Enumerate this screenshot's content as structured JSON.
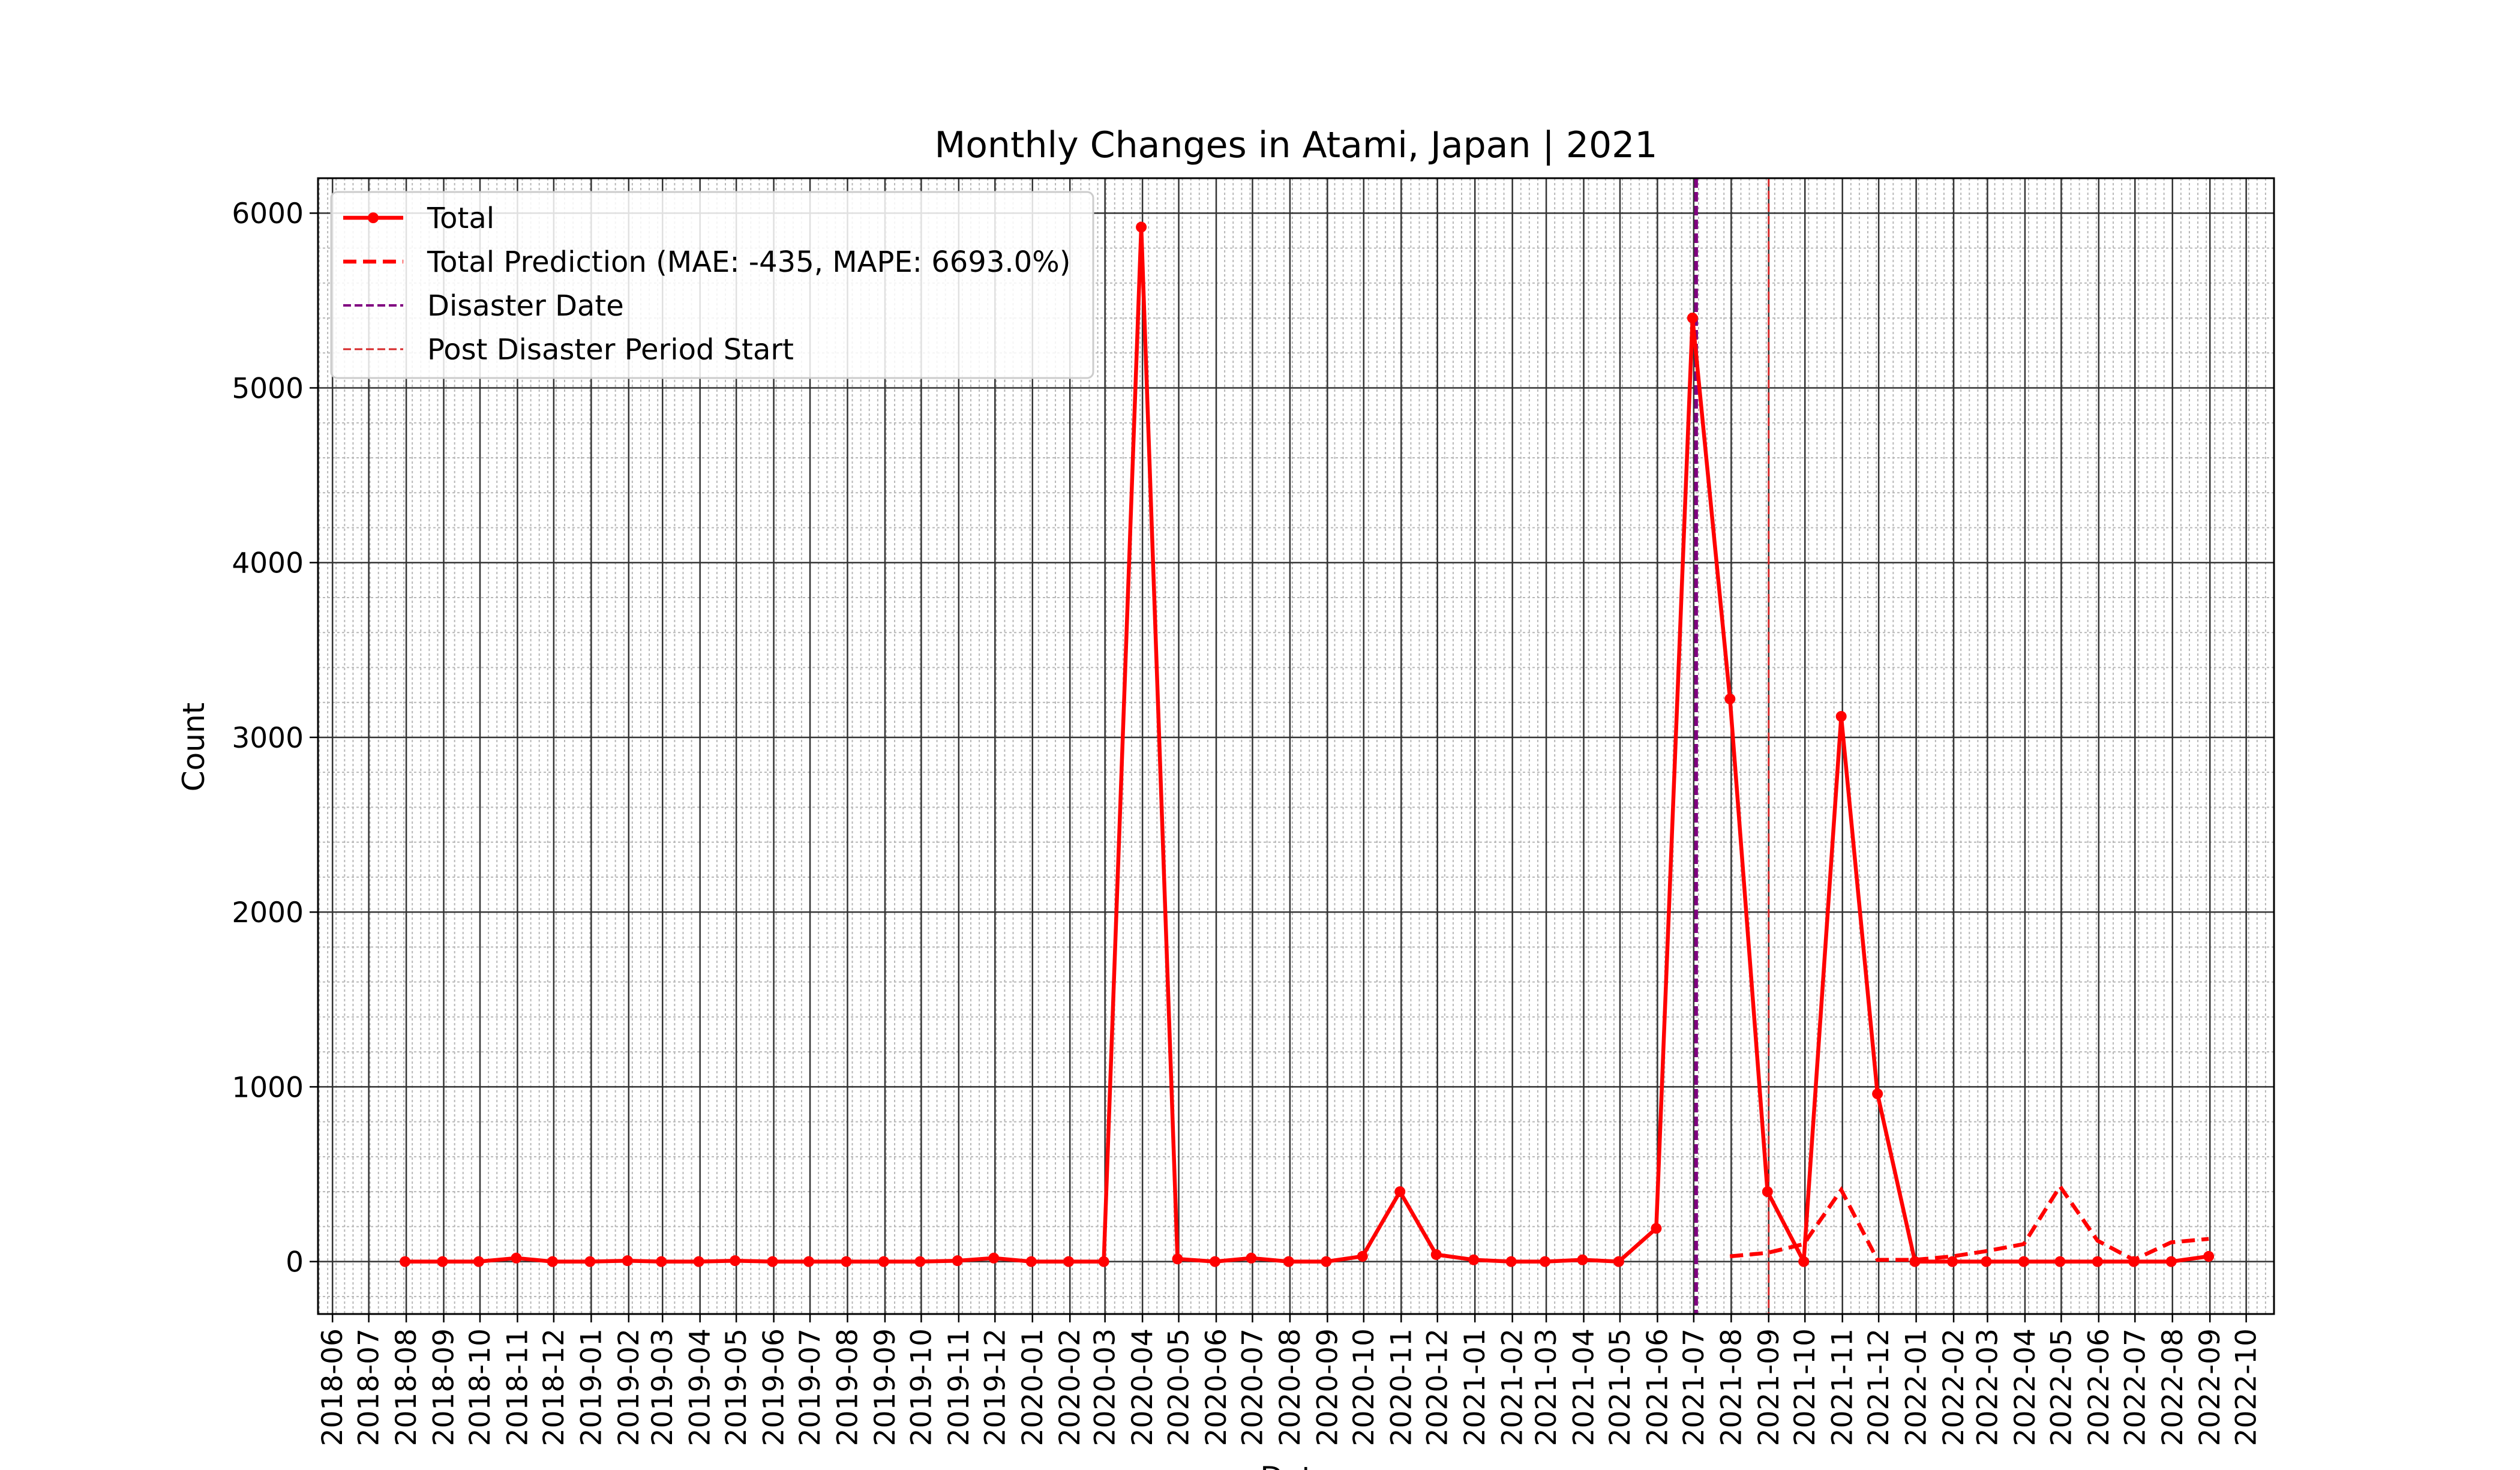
{
  "chart_data": {
    "type": "line",
    "title": "Monthly Changes in Atami, Japan | 2021",
    "xlabel": "Date",
    "ylabel": "Count",
    "ylim": [
      -300,
      6200
    ],
    "xlim": [
      "2018-05-20",
      "2022-10-24"
    ],
    "grid": true,
    "legend_position": "top-left",
    "x_tick_labels": [
      "2018-06",
      "2018-07",
      "2018-08",
      "2018-09",
      "2018-10",
      "2018-11",
      "2018-12",
      "2019-01",
      "2019-02",
      "2019-03",
      "2019-04",
      "2019-05",
      "2019-06",
      "2019-07",
      "2019-08",
      "2019-09",
      "2019-10",
      "2019-11",
      "2019-12",
      "2020-01",
      "2020-02",
      "2020-03",
      "2020-04",
      "2020-05",
      "2020-06",
      "2020-07",
      "2020-08",
      "2020-09",
      "2020-10",
      "2020-11",
      "2020-12",
      "2021-01",
      "2021-02",
      "2021-03",
      "2021-04",
      "2021-05",
      "2021-06",
      "2021-07",
      "2021-08",
      "2021-09",
      "2021-10",
      "2021-11",
      "2021-12",
      "2022-01",
      "2022-02",
      "2022-03",
      "2022-04",
      "2022-05",
      "2022-06",
      "2022-07",
      "2022-08",
      "2022-09",
      "2022-10"
    ],
    "y_ticks": [
      0,
      1000,
      2000,
      3000,
      4000,
      5000,
      6000
    ],
    "y_tick_labels": [
      "0",
      "1000",
      "2000",
      "3000",
      "4000",
      "5000",
      "6000"
    ],
    "series": [
      {
        "name": "Total",
        "style": "solid-markers",
        "color": "#ff0000",
        "x": [
          "2018-07-31",
          "2018-08-31",
          "2018-09-30",
          "2018-10-31",
          "2018-11-30",
          "2018-12-31",
          "2019-01-31",
          "2019-02-28",
          "2019-03-31",
          "2019-04-30",
          "2019-05-31",
          "2019-06-30",
          "2019-07-31",
          "2019-08-31",
          "2019-09-30",
          "2019-10-31",
          "2019-11-30",
          "2019-12-31",
          "2020-01-31",
          "2020-02-29",
          "2020-03-31",
          "2020-04-30",
          "2020-05-31",
          "2020-06-30",
          "2020-07-31",
          "2020-08-31",
          "2020-09-30",
          "2020-10-31",
          "2020-11-30",
          "2020-12-31",
          "2021-01-31",
          "2021-02-28",
          "2021-03-31",
          "2021-04-30",
          "2021-05-31",
          "2021-06-30",
          "2021-07-31",
          "2021-08-31",
          "2021-09-30",
          "2021-10-31",
          "2021-11-30",
          "2021-12-31",
          "2022-01-31",
          "2022-02-28",
          "2022-03-31",
          "2022-04-30",
          "2022-05-31",
          "2022-06-30",
          "2022-07-31",
          "2022-08-31"
        ],
        "values": [
          0,
          0,
          0,
          20,
          0,
          0,
          5,
          0,
          0,
          5,
          0,
          0,
          0,
          0,
          0,
          5,
          20,
          0,
          0,
          0,
          5920,
          15,
          0,
          20,
          0,
          0,
          30,
          400,
          40,
          10,
          0,
          0,
          10,
          0,
          190,
          5400,
          3220,
          400,
          0,
          3120,
          960,
          0,
          0,
          0,
          0,
          0,
          0,
          0,
          0,
          30
        ]
      },
      {
        "name": "Total Prediction (MAE: -435, MAPE: 6693.0%)",
        "style": "dashed",
        "color": "#ff0000",
        "x": [
          "2021-07-31",
          "2021-08-31",
          "2021-09-30",
          "2021-10-31",
          "2021-11-30",
          "2021-12-31",
          "2022-01-31",
          "2022-02-28",
          "2022-03-31",
          "2022-04-30",
          "2022-05-31",
          "2022-06-30",
          "2022-07-31",
          "2022-08-31"
        ],
        "values": [
          30,
          50,
          100,
          410,
          10,
          10,
          30,
          60,
          100,
          430,
          120,
          10,
          110,
          130
        ]
      }
    ],
    "reference_lines": [
      {
        "name": "Disaster Date",
        "x": "2021-07-03",
        "color": "#800080",
        "style": "dashed"
      },
      {
        "name": "Post Disaster Period Start",
        "x": "2021-09-01",
        "color": "#d62728",
        "style": "dashed"
      }
    ]
  }
}
